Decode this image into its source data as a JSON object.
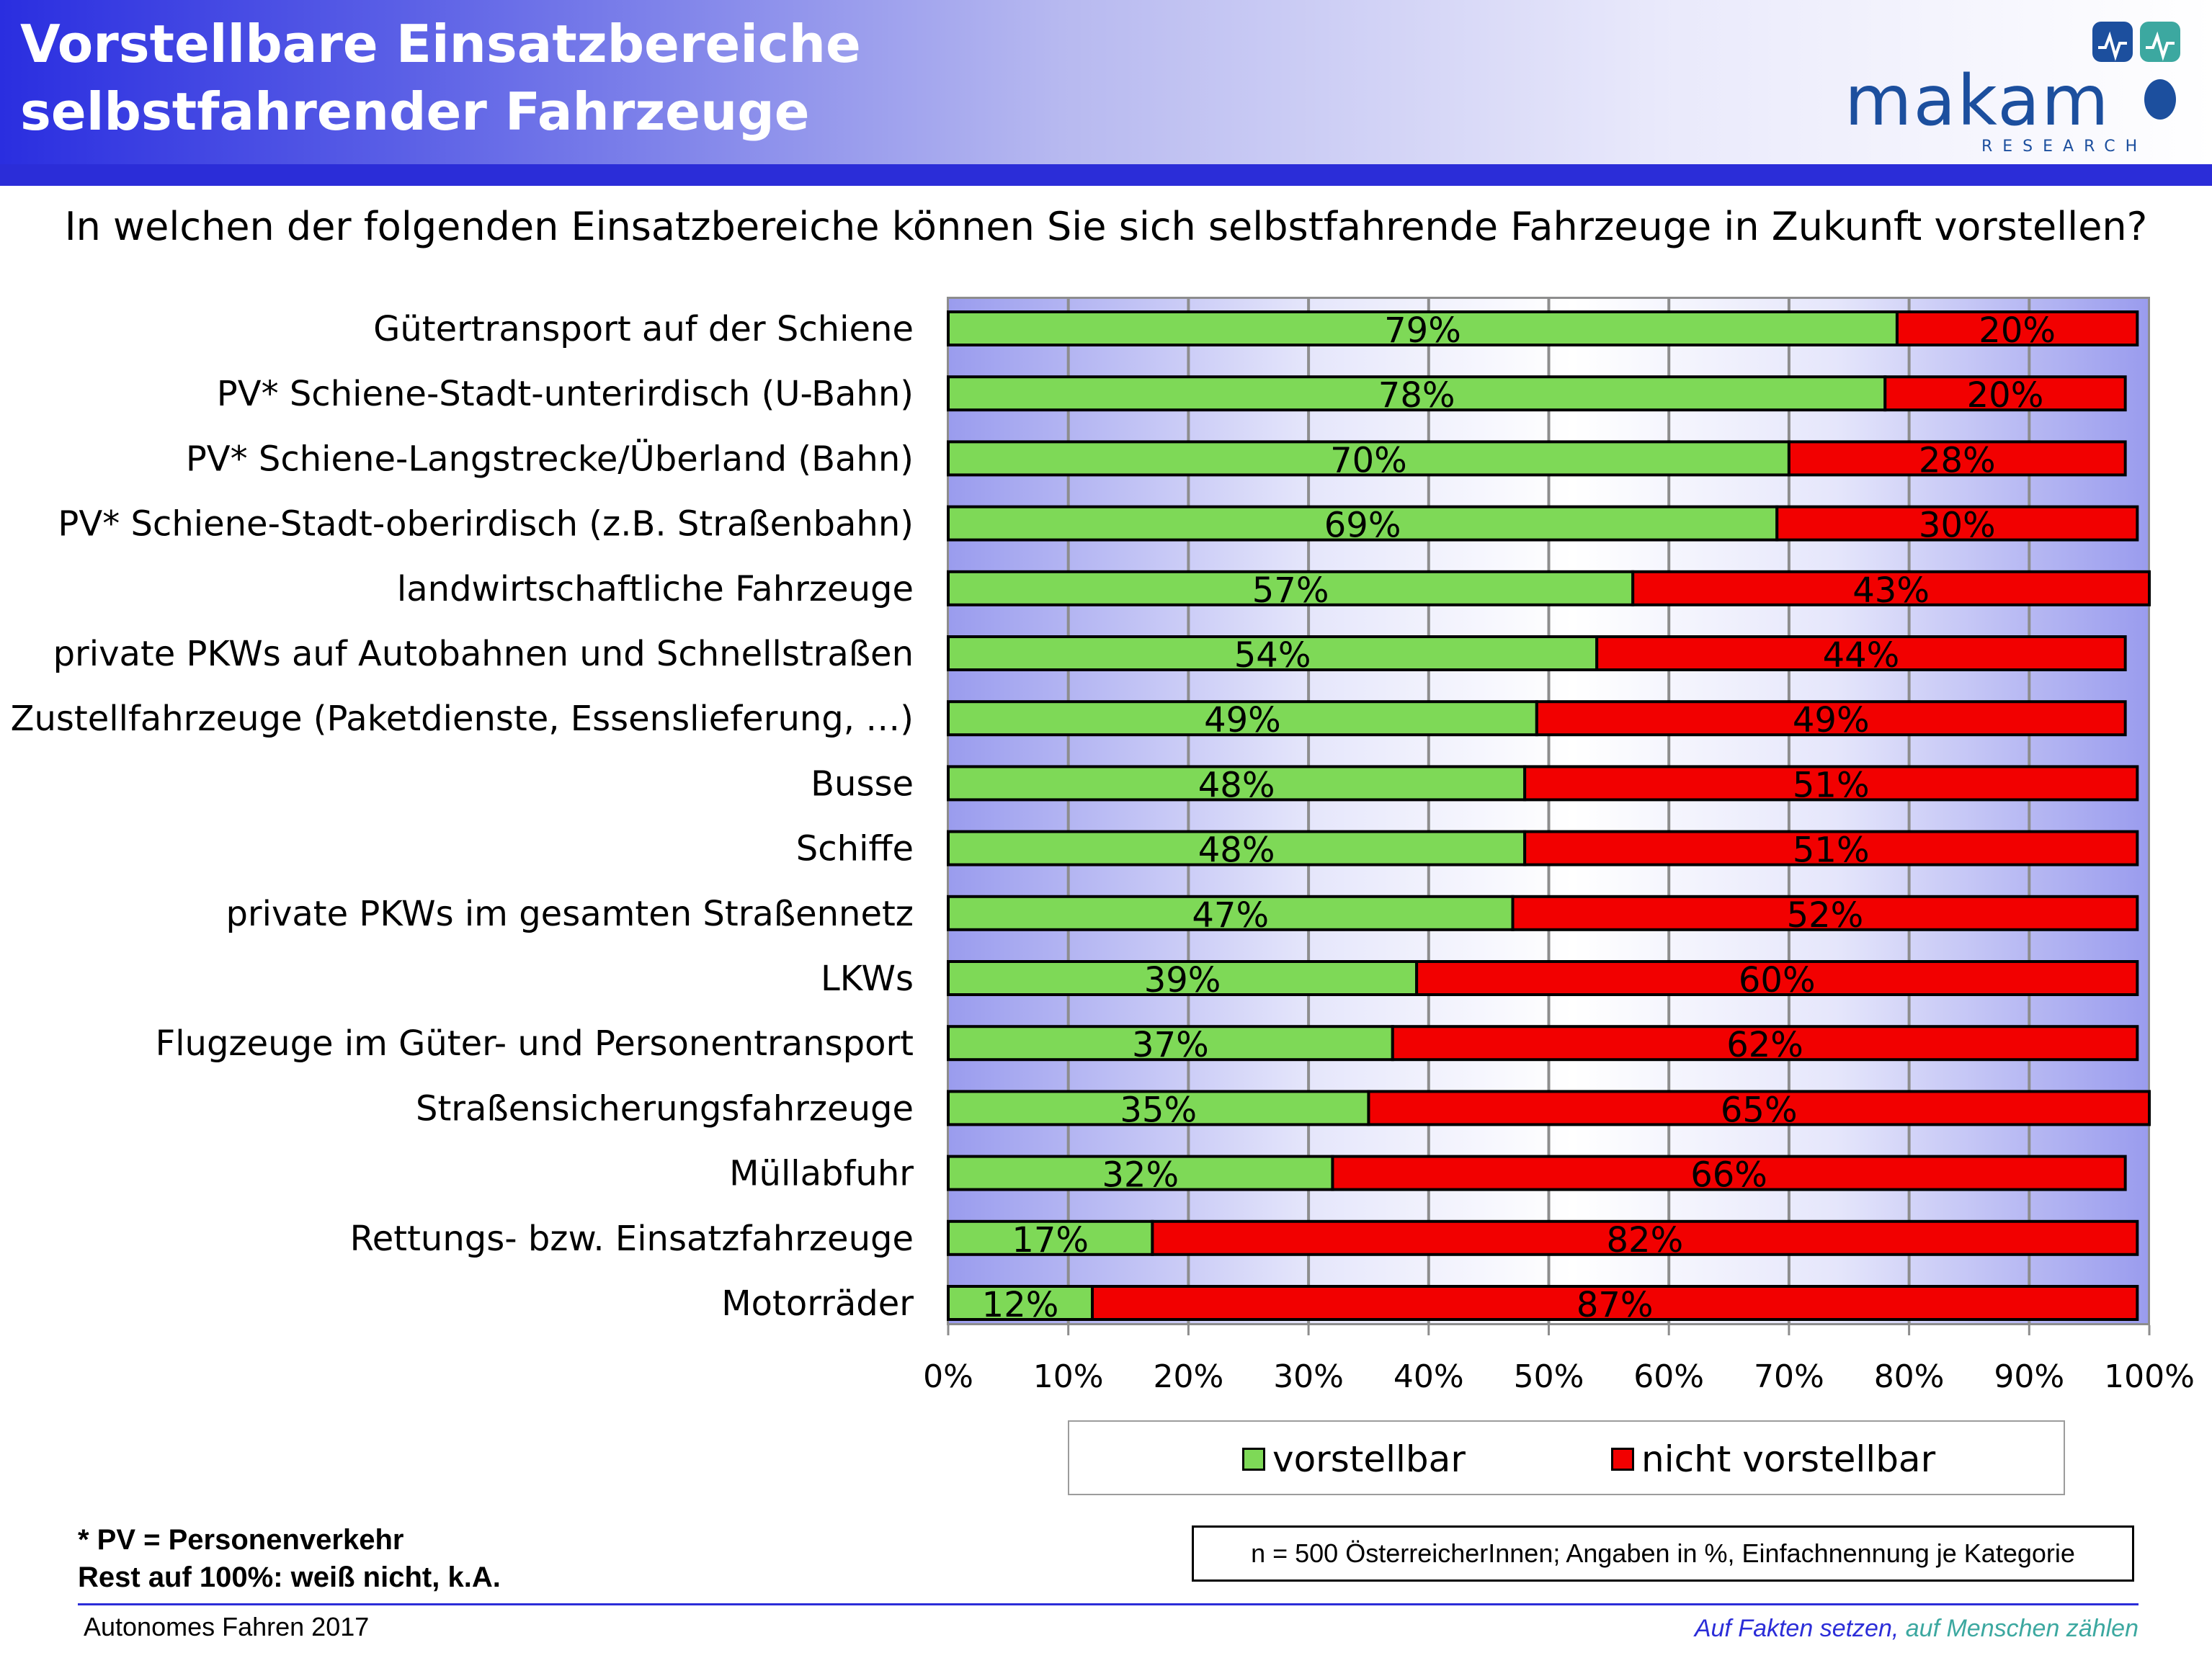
{
  "header": {
    "title_line1": "Vorstellbare Einsatzbereiche",
    "title_line2": "selbstfahrender Fahrzeuge"
  },
  "logo": {
    "word": "makam",
    "sub": "RESEARCH",
    "icon": "makam-logo-icon"
  },
  "question": "In welchen der folgenden Einsatzbereiche können Sie sich selbstfahrende Fahrzeuge in Zukunft vorstellen?",
  "colors": {
    "vorstellbar": "#7ed957",
    "nicht_vorstellbar": "#f20000",
    "header_blue": "#2b2dd8",
    "logo_blue": "#1c4f9e",
    "logo_teal": "#3ca8a0"
  },
  "chart_data": {
    "type": "bar",
    "orientation": "horizontal",
    "stacked": true,
    "categories": [
      "Gütertransport auf der Schiene",
      "PV* Schiene-Stadt-unterirdisch (U-Bahn)",
      "PV* Schiene-Langstrecke/Überland (Bahn)",
      "PV* Schiene-Stadt-oberirdisch (z.B. Straßenbahn)",
      "landwirtschaftliche Fahrzeuge",
      "private PKWs auf Autobahnen und Schnellstraßen",
      "Zustellfahrzeuge (Paketdienste, Essenslieferung, …)",
      "Busse",
      "Schiffe",
      "private PKWs im gesamten Straßennetz",
      "LKWs",
      "Flugzeuge im Güter- und Personentransport",
      "Straßensicherungsfahrzeuge",
      "Müllabfuhr",
      "Rettungs- bzw. Einsatzfahrzeuge",
      "Motorräder"
    ],
    "series": [
      {
        "name": "vorstellbar",
        "values": [
          79,
          78,
          70,
          69,
          57,
          54,
          49,
          48,
          48,
          47,
          39,
          37,
          35,
          32,
          17,
          12
        ]
      },
      {
        "name": "nicht vorstellbar",
        "values": [
          20,
          20,
          28,
          30,
          43,
          44,
          49,
          51,
          51,
          52,
          60,
          62,
          65,
          66,
          82,
          87
        ]
      }
    ],
    "xlim": [
      0,
      100
    ],
    "xticks": [
      "0%",
      "10%",
      "20%",
      "30%",
      "40%",
      "50%",
      "60%",
      "70%",
      "80%",
      "90%",
      "100%"
    ],
    "value_suffix": "%",
    "grid": true,
    "legend_position": "bottom"
  },
  "footnote": {
    "line1": "* PV = Personenverkehr",
    "line2": "Rest auf 100%: weiß nicht, k.A."
  },
  "sample_note": "n = 500 ÖsterreicherInnen; Angaben in %, Einfachnennung je Kategorie",
  "footer": {
    "left": "Autonomes Fahren 2017",
    "right_part1": "Auf Fakten setzen,",
    "right_part2": " auf Menschen zählen"
  }
}
